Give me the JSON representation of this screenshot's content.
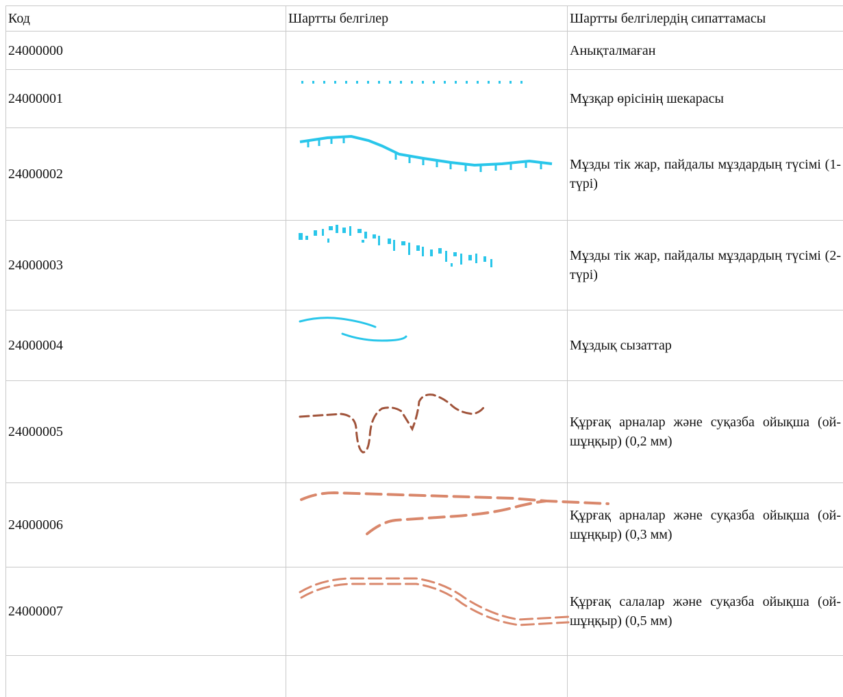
{
  "table": {
    "headers": {
      "code": "Код",
      "symbols": "Шартты белгілер",
      "description": "Шартты белгілердің сипаттамасы"
    },
    "rows": [
      {
        "code": "24000000",
        "description": "Анықталмаған",
        "symbol": ""
      },
      {
        "code": "24000001",
        "description": "Мұзқар өрісінің шекарасы",
        "symbol": "dotted-boundary-line"
      },
      {
        "code": "24000002",
        "description": "Мұзды тік жар, пайдалы мұздардың түсімі (1-түрі)",
        "symbol": "ice-cliff-ticked-line"
      },
      {
        "code": "24000003",
        "description": "Мұзды тік жар, пайдалы мұздардың түсімі (2-түрі)",
        "symbol": "ice-cliff-scattered-ticks"
      },
      {
        "code": "24000004",
        "description": "Мұздық сызаттар",
        "symbol": "ice-crack-lines"
      },
      {
        "code": "24000005",
        "description": "Құрғақ арналар және суқазба ойықша (ой-шұңқыр) (0,2 мм)",
        "symbol": "dry-channel-dashed-0-2"
      },
      {
        "code": "24000006",
        "description": "Құрғақ арналар және суқазба ойықша (ой-шұңқыр) (0,3 мм)",
        "symbol": "dry-channel-dashed-0-3"
      },
      {
        "code": "24000007",
        "description": "Құрғақ салалар және суқазба ойықша (ой-шұңқыр) (0,5 мм)",
        "symbol": "dry-branches-double-dashed-0-5"
      },
      {
        "code": "",
        "description": "",
        "symbol": ""
      }
    ]
  },
  "colors": {
    "ice_symbol": "#29c6ea",
    "dry_channel_symbol": "#a0533a",
    "dry_channel_light": "#d9876b",
    "grid_line": "#c9c9c9"
  }
}
